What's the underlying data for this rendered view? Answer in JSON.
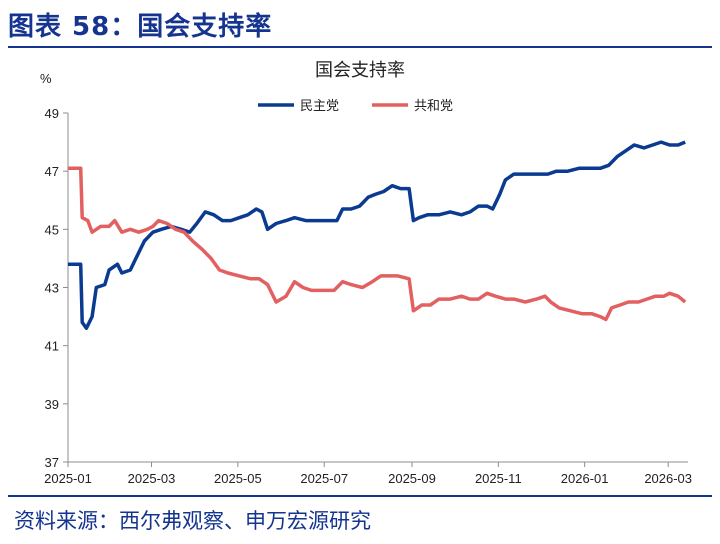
{
  "header": {
    "figure_title": "图表 58：国会支持率"
  },
  "footer": {
    "source": "资料来源：西尔弗观察、申万宏源研究"
  },
  "chart_data": {
    "type": "line",
    "title": "国会支持率",
    "ylabel": "%",
    "xlabel": "",
    "ylim": [
      37,
      49
    ],
    "yticks": [
      37,
      39,
      41,
      43,
      45,
      47,
      49
    ],
    "xlim": [
      "2025-01-01",
      "2026-03-15"
    ],
    "xticks": [
      "2025-01",
      "2025-03",
      "2025-05",
      "2025-07",
      "2025-09",
      "2025-11",
      "2026-01",
      "2026-03"
    ],
    "legend_position": "top-center",
    "grid": false,
    "series": [
      {
        "name": "民主党",
        "color": "#0b3a91",
        "points": [
          [
            "2025-01-01",
            43.8
          ],
          [
            "2025-01-10",
            43.8
          ],
          [
            "2025-01-11",
            41.8
          ],
          [
            "2025-01-14",
            41.6
          ],
          [
            "2025-01-18",
            42.0
          ],
          [
            "2025-01-21",
            43.0
          ],
          [
            "2025-01-27",
            43.1
          ],
          [
            "2025-01-30",
            43.6
          ],
          [
            "2025-02-05",
            43.8
          ],
          [
            "2025-02-08",
            43.5
          ],
          [
            "2025-02-14",
            43.6
          ],
          [
            "2025-02-18",
            44.0
          ],
          [
            "2025-02-24",
            44.6
          ],
          [
            "2025-03-02",
            44.9
          ],
          [
            "2025-03-08",
            45.0
          ],
          [
            "2025-03-15",
            45.1
          ],
          [
            "2025-03-22",
            45.0
          ],
          [
            "2025-03-28",
            44.9
          ],
          [
            "2025-04-02",
            45.2
          ],
          [
            "2025-04-08",
            45.6
          ],
          [
            "2025-04-14",
            45.5
          ],
          [
            "2025-04-20",
            45.3
          ],
          [
            "2025-04-26",
            45.3
          ],
          [
            "2025-05-02",
            45.4
          ],
          [
            "2025-05-08",
            45.5
          ],
          [
            "2025-05-14",
            45.7
          ],
          [
            "2025-05-18",
            45.6
          ],
          [
            "2025-05-22",
            45.0
          ],
          [
            "2025-05-28",
            45.2
          ],
          [
            "2025-06-04",
            45.3
          ],
          [
            "2025-06-10",
            45.4
          ],
          [
            "2025-06-18",
            45.3
          ],
          [
            "2025-06-26",
            45.3
          ],
          [
            "2025-07-04",
            45.3
          ],
          [
            "2025-07-10",
            45.3
          ],
          [
            "2025-07-14",
            45.7
          ],
          [
            "2025-07-20",
            45.7
          ],
          [
            "2025-07-26",
            45.8
          ],
          [
            "2025-08-01",
            46.1
          ],
          [
            "2025-08-06",
            46.2
          ],
          [
            "2025-08-12",
            46.3
          ],
          [
            "2025-08-18",
            46.5
          ],
          [
            "2025-08-24",
            46.4
          ],
          [
            "2025-08-30",
            46.4
          ],
          [
            "2025-09-02",
            45.3
          ],
          [
            "2025-09-06",
            45.4
          ],
          [
            "2025-09-12",
            45.5
          ],
          [
            "2025-09-20",
            45.5
          ],
          [
            "2025-09-28",
            45.6
          ],
          [
            "2025-10-06",
            45.5
          ],
          [
            "2025-10-12",
            45.6
          ],
          [
            "2025-10-18",
            45.8
          ],
          [
            "2025-10-24",
            45.8
          ],
          [
            "2025-10-28",
            45.7
          ],
          [
            "2025-11-02",
            46.2
          ],
          [
            "2025-11-06",
            46.7
          ],
          [
            "2025-11-12",
            46.9
          ],
          [
            "2025-11-20",
            46.9
          ],
          [
            "2025-11-28",
            46.9
          ],
          [
            "2025-12-06",
            46.9
          ],
          [
            "2025-12-12",
            47.0
          ],
          [
            "2025-12-20",
            47.0
          ],
          [
            "2025-12-28",
            47.1
          ],
          [
            "2026-01-05",
            47.1
          ],
          [
            "2026-01-12",
            47.1
          ],
          [
            "2026-01-18",
            47.2
          ],
          [
            "2026-01-24",
            47.5
          ],
          [
            "2026-01-30",
            47.7
          ],
          [
            "2026-02-05",
            47.9
          ],
          [
            "2026-02-12",
            47.8
          ],
          [
            "2026-02-18",
            47.9
          ],
          [
            "2026-02-24",
            48.0
          ],
          [
            "2026-03-02",
            47.9
          ],
          [
            "2026-03-08",
            47.9
          ],
          [
            "2026-03-13",
            48.0
          ]
        ]
      },
      {
        "name": "共和党",
        "color": "#e2605f",
        "points": [
          [
            "2025-01-01",
            47.1
          ],
          [
            "2025-01-10",
            47.1
          ],
          [
            "2025-01-11",
            45.4
          ],
          [
            "2025-01-15",
            45.3
          ],
          [
            "2025-01-18",
            44.9
          ],
          [
            "2025-01-24",
            45.1
          ],
          [
            "2025-01-30",
            45.1
          ],
          [
            "2025-02-03",
            45.3
          ],
          [
            "2025-02-08",
            44.9
          ],
          [
            "2025-02-14",
            45.0
          ],
          [
            "2025-02-20",
            44.9
          ],
          [
            "2025-02-26",
            45.0
          ],
          [
            "2025-03-02",
            45.1
          ],
          [
            "2025-03-06",
            45.3
          ],
          [
            "2025-03-12",
            45.2
          ],
          [
            "2025-03-18",
            45.0
          ],
          [
            "2025-03-24",
            44.9
          ],
          [
            "2025-03-30",
            44.6
          ],
          [
            "2025-04-06",
            44.3
          ],
          [
            "2025-04-12",
            44.0
          ],
          [
            "2025-04-18",
            43.6
          ],
          [
            "2025-04-24",
            43.5
          ],
          [
            "2025-05-02",
            43.4
          ],
          [
            "2025-05-10",
            43.3
          ],
          [
            "2025-05-16",
            43.3
          ],
          [
            "2025-05-22",
            43.1
          ],
          [
            "2025-05-28",
            42.5
          ],
          [
            "2025-06-04",
            42.7
          ],
          [
            "2025-06-10",
            43.2
          ],
          [
            "2025-06-16",
            43.0
          ],
          [
            "2025-06-22",
            42.9
          ],
          [
            "2025-06-30",
            42.9
          ],
          [
            "2025-07-08",
            42.9
          ],
          [
            "2025-07-14",
            43.2
          ],
          [
            "2025-07-20",
            43.1
          ],
          [
            "2025-07-28",
            43.0
          ],
          [
            "2025-08-04",
            43.2
          ],
          [
            "2025-08-10",
            43.4
          ],
          [
            "2025-08-16",
            43.4
          ],
          [
            "2025-08-22",
            43.4
          ],
          [
            "2025-08-30",
            43.3
          ],
          [
            "2025-09-02",
            42.2
          ],
          [
            "2025-09-08",
            42.4
          ],
          [
            "2025-09-14",
            42.4
          ],
          [
            "2025-09-20",
            42.6
          ],
          [
            "2025-09-28",
            42.6
          ],
          [
            "2025-10-06",
            42.7
          ],
          [
            "2025-10-12",
            42.6
          ],
          [
            "2025-10-18",
            42.6
          ],
          [
            "2025-10-24",
            42.8
          ],
          [
            "2025-10-30",
            42.7
          ],
          [
            "2025-11-06",
            42.6
          ],
          [
            "2025-11-12",
            42.6
          ],
          [
            "2025-11-20",
            42.5
          ],
          [
            "2025-11-28",
            42.6
          ],
          [
            "2025-12-04",
            42.7
          ],
          [
            "2025-12-08",
            42.5
          ],
          [
            "2025-12-14",
            42.3
          ],
          [
            "2025-12-22",
            42.2
          ],
          [
            "2025-12-30",
            42.1
          ],
          [
            "2026-01-06",
            42.1
          ],
          [
            "2026-01-12",
            42.0
          ],
          [
            "2026-01-16",
            41.9
          ],
          [
            "2026-01-20",
            42.3
          ],
          [
            "2026-01-26",
            42.4
          ],
          [
            "2026-02-01",
            42.5
          ],
          [
            "2026-02-08",
            42.5
          ],
          [
            "2026-02-14",
            42.6
          ],
          [
            "2026-02-20",
            42.7
          ],
          [
            "2026-02-26",
            42.7
          ],
          [
            "2026-03-02",
            42.8
          ],
          [
            "2026-03-08",
            42.7
          ],
          [
            "2026-03-13",
            42.5
          ]
        ]
      }
    ]
  }
}
